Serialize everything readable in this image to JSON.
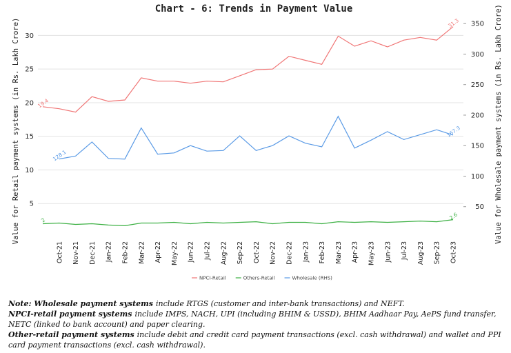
{
  "chart_data": {
    "type": "line",
    "title": "Chart - 6: Trends in Payment Value",
    "ylabel": "Value for Retail payment systems (in Rs. Lakh Crore)",
    "y2label": "Value for Wholesale payment systems (in Rs. Lakh Crore)",
    "categories": [
      null,
      "Oct-21",
      "Nov-21",
      "Dec-21",
      "Jan-22",
      "Feb-22",
      "Mar-22",
      "Apr-22",
      "May-22",
      "Jun-22",
      "Jul-22",
      "Aug-22",
      "Sep-22",
      "Oct-22",
      "Nov-22",
      "Dec-22",
      "Jan-23",
      "Feb-23",
      "Mar-23",
      "Apr-23",
      "May-23",
      "Jun-23",
      "Jul-23",
      "Aug-23",
      "Sep-23",
      "Oct-23"
    ],
    "ylim": [
      0,
      32.4
    ],
    "yticks": [
      5,
      10,
      15,
      20,
      25,
      30
    ],
    "y2lim": [
      0,
      357
    ],
    "y2ticks": [
      50,
      100,
      150,
      200,
      250,
      300,
      350
    ],
    "grid": true,
    "legend": "bottom",
    "series": [
      {
        "name": "NPCI-Retail",
        "color": "#f07575",
        "labeled_points": [
          0,
          25
        ],
        "values": [
          19.4,
          19.1,
          18.6,
          20.9,
          20.2,
          20.4,
          23.7,
          23.2,
          23.2,
          22.9,
          23.2,
          23.1,
          24.0,
          24.9,
          25.0,
          26.9,
          26.3,
          25.7,
          29.9,
          28.4,
          29.2,
          28.3,
          29.3,
          29.7,
          29.3,
          31.3
        ]
      },
      {
        "name": "Others-Retail",
        "color": "#3cb043",
        "labeled_points": [
          0,
          25
        ],
        "values": [
          2,
          2.1,
          1.9,
          2.0,
          1.8,
          1.7,
          2.1,
          2.1,
          2.2,
          2.0,
          2.2,
          2.1,
          2.2,
          2.3,
          2.0,
          2.2,
          2.2,
          2.0,
          2.3,
          2.2,
          2.3,
          2.2,
          2.3,
          2.4,
          2.3,
          2.6
        ]
      },
      {
        "name": "Wholesale (RHS)",
        "color": "#5b9be6",
        "axis": "y2",
        "labeled_points": [
          1,
          25
        ],
        "values": [
          null,
          128.1,
          133,
          156,
          129,
          128,
          179,
          136,
          138,
          150,
          141,
          142,
          166,
          142,
          150,
          166,
          154,
          148,
          198,
          146,
          159,
          173,
          160,
          168,
          176,
          167.3
        ]
      }
    ]
  },
  "notes": [
    {
      "lead": "Note: Wholesale payment systems",
      "text": "include RTGS (customer and inter-bank transactions) and NEFT."
    },
    {
      "lead": "NPCI-retail payment systems",
      "text": "include IMPS, NACH, UPI (including BHIM & USSD), BHIM Aadhaar Pay, AePS fund transfer, NETC (linked to bank account) and paper clearing."
    },
    {
      "lead": "Other-retail payment systems",
      "text": "include debit and credit card payment transactions (excl. cash withdrawal) and wallet and PPI card payment transactions (excl. cash withdrawal)."
    }
  ]
}
